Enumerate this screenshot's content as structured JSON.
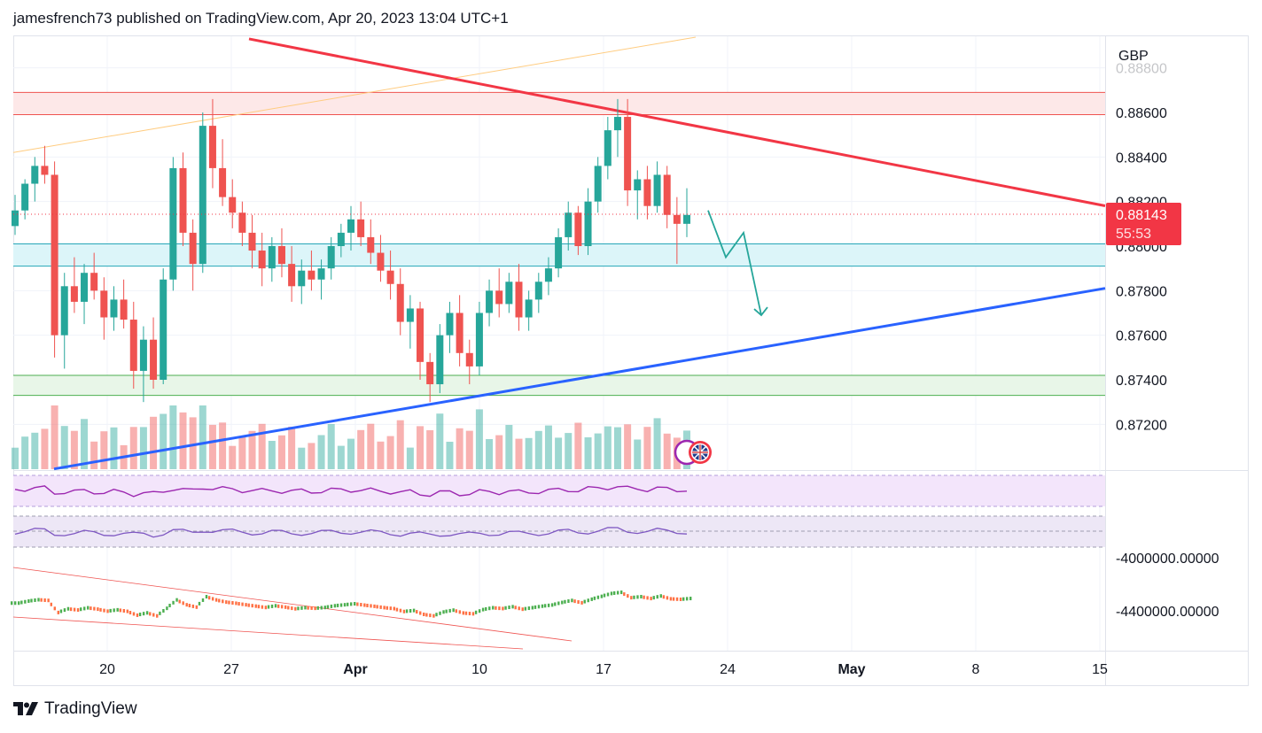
{
  "header": {
    "text": "jamesfrench73 published on TradingView.com, Apr 20, 2023 13:04 UTC+1"
  },
  "brand": {
    "name": "TradingView",
    "logo": "tradingview-logo-icon"
  },
  "colors": {
    "bull": "#26a69a",
    "bear": "#ef5350",
    "trend_resistance": "#f23645",
    "trend_support": "#2962ff",
    "price_badge": "#f23645",
    "rsi": "#9c27b0",
    "stoch": "#7e57c2",
    "indicator_up": "#4caf50",
    "indicator_down": "#ff7043"
  },
  "chart_data": {
    "type": "candlestick",
    "currency": "GBP",
    "ylim": [
      0.87,
      0.8881
    ],
    "y_ticks": [
      "0.88800",
      "0.88600",
      "0.88400",
      "0.88200",
      "0.88000",
      "0.87800",
      "0.87600",
      "0.87400",
      "0.87200"
    ],
    "x_ticks": [
      {
        "label": "20",
        "bold": false
      },
      {
        "label": "27",
        "bold": false
      },
      {
        "label": "Apr",
        "bold": true
      },
      {
        "label": "10",
        "bold": false
      },
      {
        "label": "17",
        "bold": false
      },
      {
        "label": "24",
        "bold": false
      },
      {
        "label": "May",
        "bold": true
      },
      {
        "label": "8",
        "bold": false
      },
      {
        "label": "15",
        "bold": false
      }
    ],
    "last_price": {
      "value": "0.88143",
      "countdown": "55:53"
    },
    "zones": [
      {
        "name": "resistance-zone",
        "from": 0.8859,
        "to": 0.8869
      },
      {
        "name": "pivot-zone",
        "from": 0.8791,
        "to": 0.8801
      },
      {
        "name": "support-zone",
        "from": 0.8733,
        "to": 0.8742
      }
    ],
    "trendlines": [
      {
        "name": "descending-resistance",
        "from": {
          "date": "Mar 27",
          "price": 0.8893
        },
        "to": {
          "date": "May 15",
          "price": 0.8817
        }
      },
      {
        "name": "ascending-support",
        "from": {
          "date": "Mar 16",
          "price": 0.87
        },
        "to": {
          "date": "May 15",
          "price": 0.8782
        }
      }
    ],
    "projection_path": [
      {
        "date": "Apr 21",
        "price": 0.8816
      },
      {
        "date": "Apr 22",
        "price": 0.8795
      },
      {
        "date": "Apr 23",
        "price": 0.8806
      },
      {
        "date": "Apr 24",
        "price": 0.8769
      }
    ],
    "indicator_ticks": [
      "-4000000.00000",
      "-4400000.00000"
    ],
    "candles": [
      [
        0.8809,
        0.8823,
        0.8805,
        0.8816
      ],
      [
        0.8816,
        0.883,
        0.8812,
        0.8828
      ],
      [
        0.8828,
        0.884,
        0.882,
        0.8836
      ],
      [
        0.8836,
        0.8845,
        0.8828,
        0.8832
      ],
      [
        0.8832,
        0.8838,
        0.875,
        0.876
      ],
      [
        0.876,
        0.8788,
        0.8745,
        0.8782
      ],
      [
        0.8782,
        0.8795,
        0.877,
        0.8775
      ],
      [
        0.8775,
        0.8792,
        0.8765,
        0.8788
      ],
      [
        0.8788,
        0.8797,
        0.8776,
        0.878
      ],
      [
        0.878,
        0.8786,
        0.8758,
        0.8768
      ],
      [
        0.8768,
        0.8782,
        0.8762,
        0.8776
      ],
      [
        0.8776,
        0.8785,
        0.8763,
        0.8767
      ],
      [
        0.8767,
        0.8775,
        0.8736,
        0.8744
      ],
      [
        0.8744,
        0.8764,
        0.873,
        0.8758
      ],
      [
        0.8758,
        0.8768,
        0.8736,
        0.874
      ],
      [
        0.874,
        0.879,
        0.8738,
        0.8785
      ],
      [
        0.8785,
        0.884,
        0.878,
        0.8835
      ],
      [
        0.8835,
        0.8842,
        0.88,
        0.8806
      ],
      [
        0.8806,
        0.8812,
        0.878,
        0.8792
      ],
      [
        0.8792,
        0.886,
        0.8788,
        0.8854
      ],
      [
        0.8854,
        0.8866,
        0.8826,
        0.8835
      ],
      [
        0.8835,
        0.8848,
        0.8818,
        0.8822
      ],
      [
        0.8822,
        0.883,
        0.8808,
        0.8815
      ],
      [
        0.8815,
        0.882,
        0.88,
        0.8806
      ],
      [
        0.8806,
        0.8814,
        0.879,
        0.8798
      ],
      [
        0.8798,
        0.8806,
        0.8782,
        0.879
      ],
      [
        0.879,
        0.8804,
        0.8784,
        0.88
      ],
      [
        0.88,
        0.8808,
        0.8786,
        0.8792
      ],
      [
        0.8792,
        0.88,
        0.8775,
        0.8782
      ],
      [
        0.8782,
        0.8794,
        0.8774,
        0.8789
      ],
      [
        0.8789,
        0.8798,
        0.878,
        0.8785
      ],
      [
        0.8785,
        0.8794,
        0.8776,
        0.879
      ],
      [
        0.879,
        0.8804,
        0.8785,
        0.88
      ],
      [
        0.88,
        0.881,
        0.8795,
        0.8806
      ],
      [
        0.8806,
        0.8818,
        0.8798,
        0.8812
      ],
      [
        0.8812,
        0.882,
        0.88,
        0.8804
      ],
      [
        0.8804,
        0.8812,
        0.8792,
        0.8797
      ],
      [
        0.8797,
        0.8805,
        0.8784,
        0.8789
      ],
      [
        0.8789,
        0.8798,
        0.8776,
        0.8783
      ],
      [
        0.8783,
        0.879,
        0.876,
        0.8766
      ],
      [
        0.8766,
        0.8778,
        0.8754,
        0.8772
      ],
      [
        0.8772,
        0.8775,
        0.874,
        0.8748
      ],
      [
        0.8748,
        0.8752,
        0.873,
        0.8738
      ],
      [
        0.8738,
        0.8765,
        0.8734,
        0.876
      ],
      [
        0.876,
        0.8775,
        0.8752,
        0.877
      ],
      [
        0.877,
        0.8778,
        0.8746,
        0.8752
      ],
      [
        0.8752,
        0.8758,
        0.8738,
        0.8746
      ],
      [
        0.8746,
        0.8775,
        0.8742,
        0.877
      ],
      [
        0.877,
        0.8785,
        0.8764,
        0.878
      ],
      [
        0.878,
        0.879,
        0.8768,
        0.8774
      ],
      [
        0.8774,
        0.8788,
        0.877,
        0.8784
      ],
      [
        0.8784,
        0.8792,
        0.8762,
        0.8768
      ],
      [
        0.8768,
        0.878,
        0.8762,
        0.8776
      ],
      [
        0.8776,
        0.8788,
        0.877,
        0.8784
      ],
      [
        0.8784,
        0.8795,
        0.8778,
        0.879
      ],
      [
        0.879,
        0.8808,
        0.8786,
        0.8804
      ],
      [
        0.8804,
        0.882,
        0.8798,
        0.8815
      ],
      [
        0.8815,
        0.8818,
        0.8796,
        0.88
      ],
      [
        0.88,
        0.8826,
        0.8796,
        0.882
      ],
      [
        0.882,
        0.884,
        0.8815,
        0.8836
      ],
      [
        0.8836,
        0.8858,
        0.883,
        0.8852
      ],
      [
        0.8852,
        0.8866,
        0.884,
        0.8858
      ],
      [
        0.8858,
        0.8866,
        0.8818,
        0.8825
      ],
      [
        0.8825,
        0.8834,
        0.8812,
        0.883
      ],
      [
        0.883,
        0.8836,
        0.8812,
        0.8818
      ],
      [
        0.8818,
        0.8838,
        0.8815,
        0.8832
      ],
      [
        0.8832,
        0.8836,
        0.8808,
        0.8814
      ],
      [
        0.8814,
        0.8822,
        0.8792,
        0.881
      ],
      [
        0.881,
        0.8826,
        0.8804,
        0.8814
      ]
    ]
  }
}
